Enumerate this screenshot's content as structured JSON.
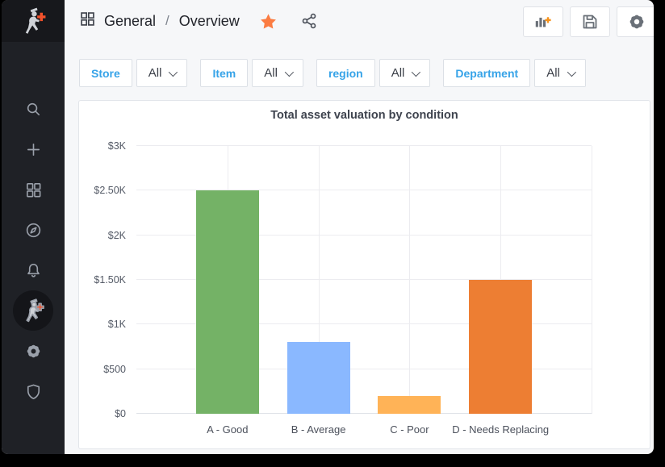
{
  "header": {
    "breadcrumb": {
      "icon": "apps-grid",
      "section": "General",
      "separator": "/",
      "page": "Overview"
    },
    "favorite_icon": "star-filled",
    "share_icon": "share-alt",
    "actions": [
      {
        "name": "add-panel",
        "icon": "bar-chart-plus"
      },
      {
        "name": "save-dashboard",
        "icon": "save"
      },
      {
        "name": "dashboard-settings",
        "icon": "gear"
      }
    ]
  },
  "sidebar": {
    "items": [
      {
        "name": "app-logo",
        "icon": "walking-man-plus",
        "active": false
      },
      {
        "name": "search",
        "icon": "magnifier",
        "active": false
      },
      {
        "name": "create",
        "icon": "plus",
        "active": false
      },
      {
        "name": "dashboards",
        "icon": "four-squares",
        "active": false
      },
      {
        "name": "explore",
        "icon": "compass",
        "active": false
      },
      {
        "name": "alerting",
        "icon": "bell",
        "active": false
      },
      {
        "name": "app-plugin",
        "icon": "walking-man-plus",
        "active": true
      },
      {
        "name": "configuration",
        "icon": "gear",
        "active": false
      },
      {
        "name": "server-admin",
        "icon": "shield",
        "active": false
      }
    ]
  },
  "filters": [
    {
      "label": "Store",
      "value": "All"
    },
    {
      "label": "Item",
      "value": "All"
    },
    {
      "label": "region",
      "value": "All"
    },
    {
      "label": "Department",
      "value": "All"
    }
  ],
  "panel": {
    "title": "Total asset valuation by condition"
  },
  "chart_data": {
    "type": "bar",
    "title": "Total asset valuation by condition",
    "categories": [
      "A - Good",
      "B - Average",
      "C - Poor",
      "D - Needs Replacing"
    ],
    "values": [
      2500,
      800,
      200,
      1500
    ],
    "bar_colors": [
      "#74b266",
      "#8ab8ff",
      "#ffb357",
      "#ed7e33"
    ],
    "xlabel": "",
    "ylabel": "",
    "ylim": [
      0,
      3000
    ],
    "yticks": [
      {
        "value": 0,
        "label": "$0"
      },
      {
        "value": 500,
        "label": "$500"
      },
      {
        "value": 1000,
        "label": "$1K"
      },
      {
        "value": 1500,
        "label": "$1.50K"
      },
      {
        "value": 2000,
        "label": "$2K"
      },
      {
        "value": 2500,
        "label": "$2.50K"
      },
      {
        "value": 3000,
        "label": "$3K"
      }
    ],
    "grid": true,
    "legend_position": "none"
  },
  "colors": {
    "filter_label_blue": "#36a3e8",
    "star_orange": "#fb7c42",
    "logo_plus_orange": "#f2512b",
    "add_panel_plus_orange": "#f6931d",
    "sidebar_bg": "#1f2126",
    "page_bg": "#f6f7f9",
    "panel_bg": "#ffffff"
  }
}
